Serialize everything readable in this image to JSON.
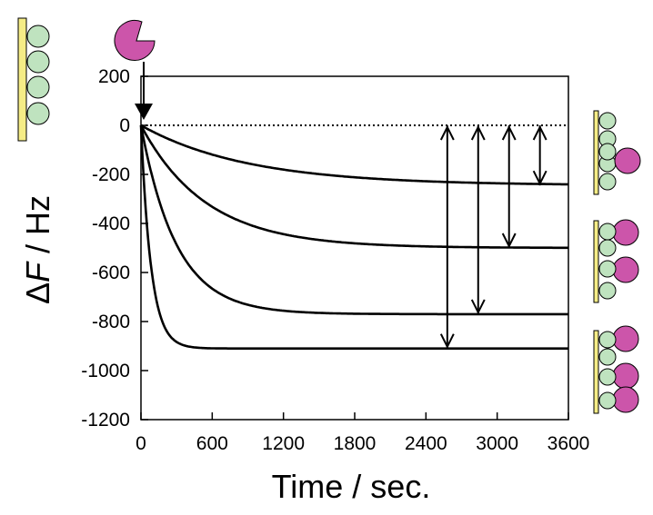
{
  "chart_data": {
    "type": "line",
    "xlabel": "Time / sec.",
    "ylabel_prefix": "Δ",
    "ylabel_var": "F",
    "ylabel_suffix": " / Hz",
    "xlim": [
      0,
      3600
    ],
    "ylim": [
      -1200,
      200
    ],
    "xticks": [
      0,
      600,
      1200,
      1800,
      2400,
      3000,
      3600
    ],
    "yticks": [
      200,
      0,
      -200,
      -400,
      -600,
      -800,
      -1000,
      -1200
    ],
    "grid": false,
    "baseline": 0,
    "series": [
      {
        "plateau": -245,
        "tau": 900
      },
      {
        "plateau": -500,
        "tau": 550
      },
      {
        "plateau": -770,
        "tau": 300
      },
      {
        "plateau": -910,
        "tau": 85
      }
    ],
    "arrows": [
      {
        "x": 2580,
        "from": 0,
        "to": -910
      },
      {
        "x": 2840,
        "from": 0,
        "to": -770
      },
      {
        "x": 3100,
        "from": 0,
        "to": -500
      },
      {
        "x": 3360,
        "from": 0,
        "to": -245
      }
    ],
    "colors": {
      "analyte": "#cc55aa",
      "immobilized": "#bfe3bf",
      "substrate": "#f5ec86",
      "line": "#000000"
    }
  }
}
